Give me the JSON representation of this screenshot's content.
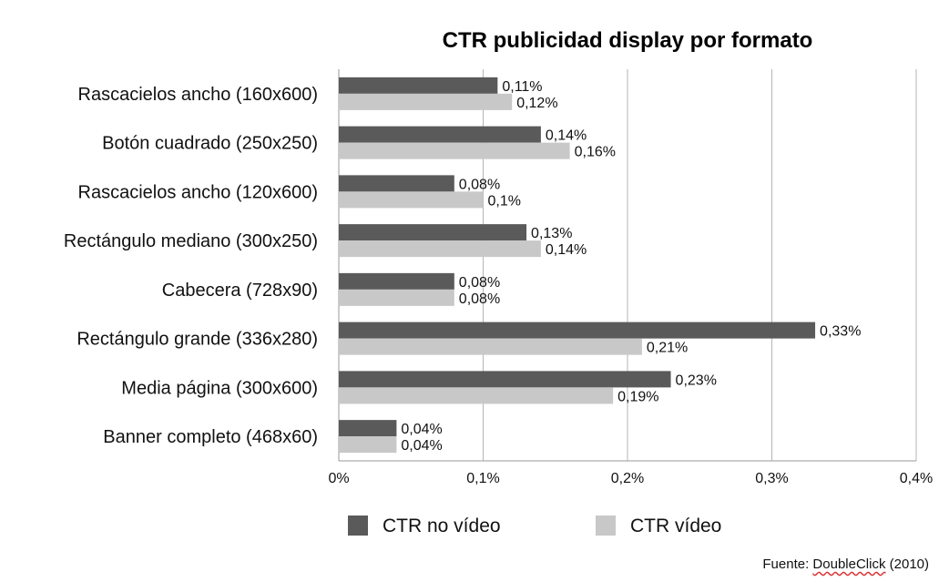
{
  "chart_data": {
    "type": "bar",
    "orientation": "horizontal",
    "title": "CTR publicidad display por formato",
    "xlabel": "",
    "ylabel": "",
    "xlim": [
      0,
      0.4
    ],
    "x_ticks": [
      "0%",
      "0,1%",
      "0,2%",
      "0,3%",
      "0,4%"
    ],
    "x_tick_values": [
      0,
      0.1,
      0.2,
      0.3,
      0.4
    ],
    "grid": "vertical",
    "legend_position": "bottom",
    "categories": [
      "Rascacielos ancho (160x600)",
      "Botón cuadrado (250x250)",
      "Rascacielos ancho (120x600)",
      "Rectángulo mediano (300x250)",
      "Cabecera (728x90)",
      "Rectángulo grande (336x280)",
      "Media página (300x600)",
      "Banner completo (468x60)"
    ],
    "series": [
      {
        "name": "CTR no vídeo",
        "color": "#5a5a5a",
        "values": [
          0.11,
          0.14,
          0.08,
          0.13,
          0.08,
          0.33,
          0.23,
          0.04
        ],
        "labels": [
          "0,11%",
          "0,14%",
          "0,08%",
          "0,13%",
          "0,08%",
          "0,33%",
          "0,23%",
          "0,04%"
        ]
      },
      {
        "name": "CTR vídeo",
        "color": "#c8c8c8",
        "values": [
          0.12,
          0.16,
          0.1,
          0.14,
          0.08,
          0.21,
          0.19,
          0.04
        ],
        "labels": [
          "0,12%",
          "0,16%",
          "0,1%",
          "0,14%",
          "0,08%",
          "0,21%",
          "0,19%",
          "0,04%"
        ]
      }
    ]
  },
  "source": {
    "prefix": "Fuente: ",
    "brand": "DoubleClick",
    "suffix": " (2010)"
  }
}
